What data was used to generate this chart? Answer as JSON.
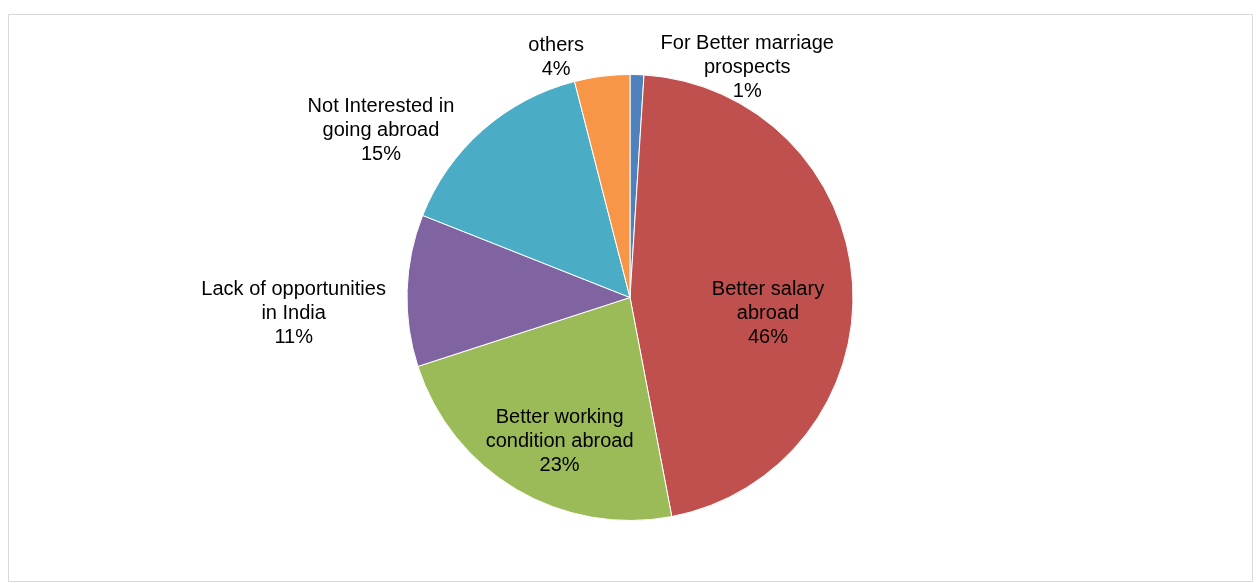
{
  "chart_data": {
    "type": "pie",
    "categories": [
      "For Better marriage prospects",
      "Better salary abroad",
      "Better working condition abroad",
      "Lack of opportunities in India",
      "Not Interested in going abroad",
      "others"
    ],
    "values": [
      1,
      46,
      23,
      11,
      15,
      4
    ],
    "colors": [
      "#4f81bd",
      "#c0504d",
      "#9bbb59",
      "#8064a2",
      "#4bacc6",
      "#f79646"
    ],
    "value_labels": [
      "1%",
      "46%",
      "23%",
      "11%",
      "15%",
      "4%"
    ]
  }
}
